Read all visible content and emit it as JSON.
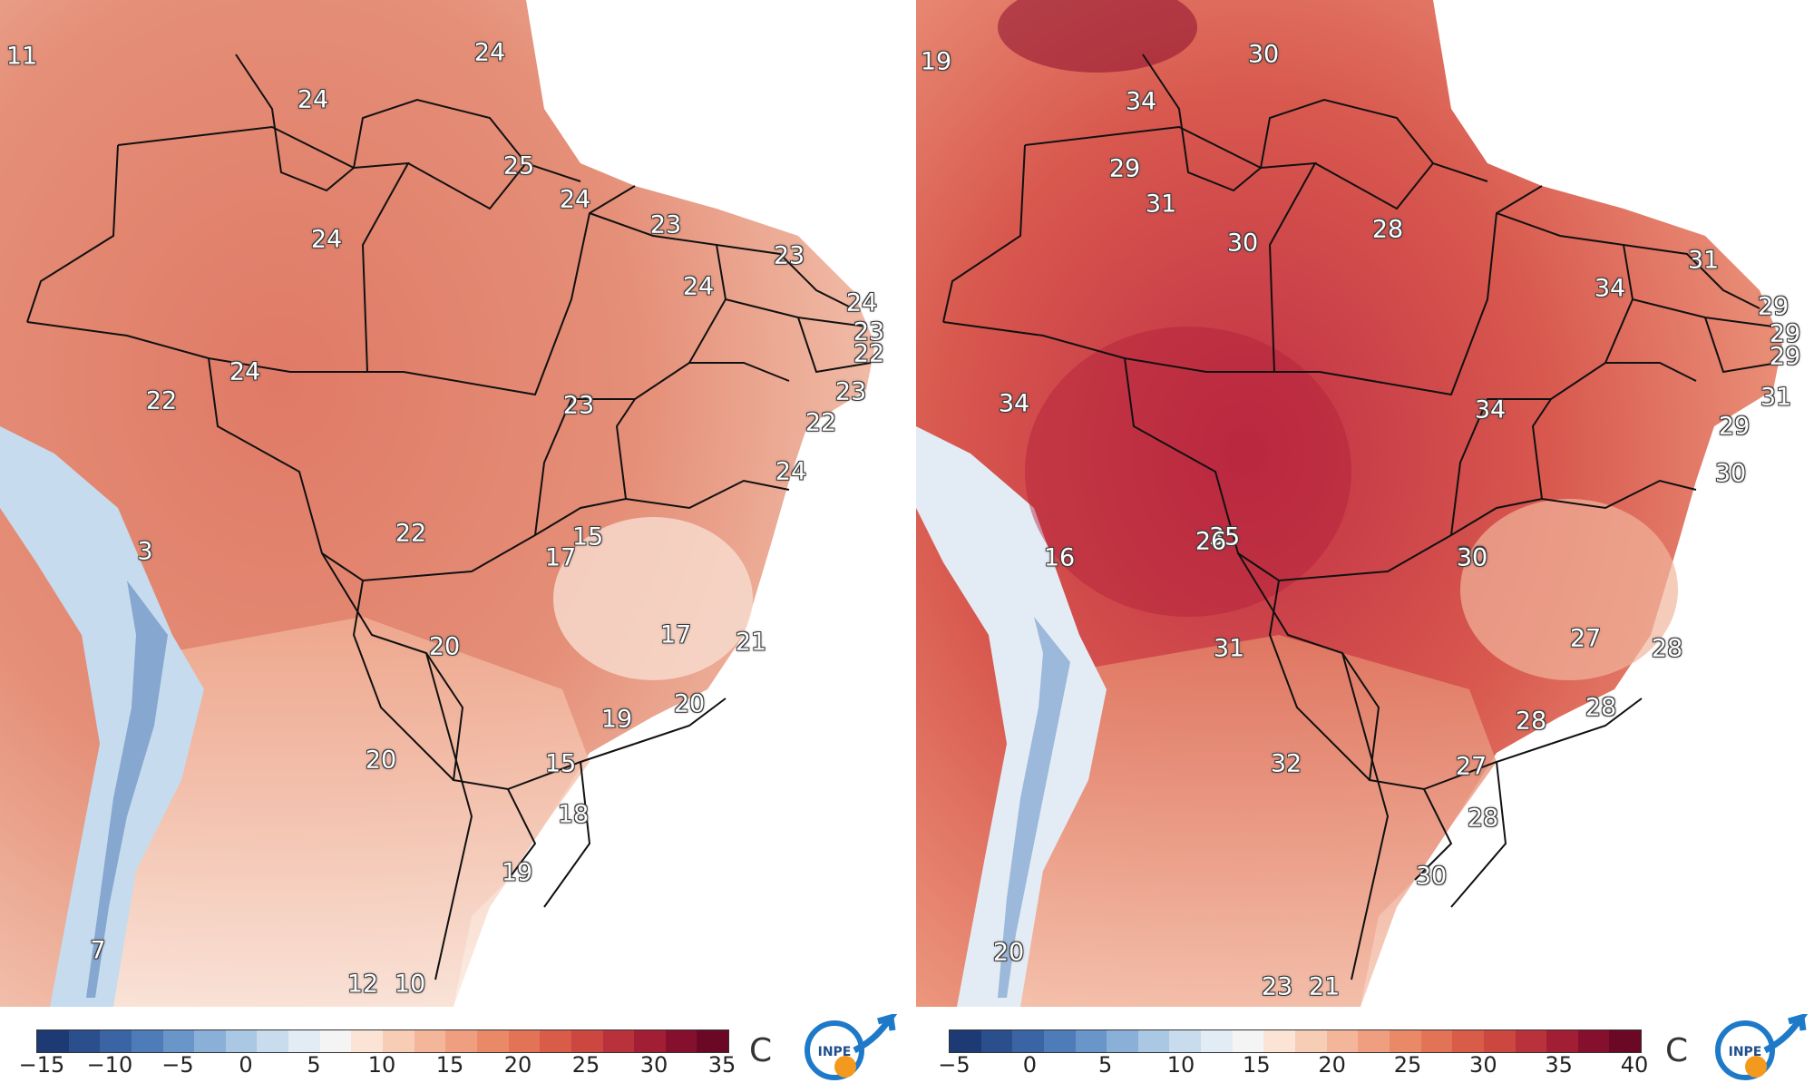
{
  "panels": [
    {
      "id": "min",
      "unit": "C",
      "colorbar": {
        "ticks": [
          "−15",
          "−10",
          "−5",
          "0",
          "5",
          "10",
          "15",
          "20",
          "25",
          "30",
          "35"
        ],
        "colors": [
          "#1d3a74",
          "#2a4f8c",
          "#3a64a3",
          "#4e7cb8",
          "#6a95c9",
          "#8bb0d8",
          "#aac7e4",
          "#c8dcee",
          "#e2ecf5",
          "#f4f4f4",
          "#fbe3d6",
          "#f8cdb6",
          "#f4b69a",
          "#ef9f80",
          "#e98968",
          "#e27356",
          "#d85c48",
          "#cb4740",
          "#b8313b",
          "#a11e34",
          "#85102d",
          "#6a0826"
        ]
      },
      "labels": [
        {
          "text": "11"
        },
        {
          "text": "24"
        },
        {
          "text": "24"
        },
        {
          "text": "25"
        },
        {
          "text": "24"
        },
        {
          "text": "24"
        },
        {
          "text": "23"
        },
        {
          "text": "23"
        },
        {
          "text": "24"
        },
        {
          "text": "24"
        },
        {
          "text": "23"
        },
        {
          "text": "22"
        },
        {
          "text": "23"
        },
        {
          "text": "22"
        },
        {
          "text": "24"
        },
        {
          "text": "22"
        },
        {
          "text": "23"
        },
        {
          "text": "24"
        },
        {
          "text": "3"
        },
        {
          "text": "22"
        },
        {
          "text": "15"
        },
        {
          "text": "17"
        },
        {
          "text": "17"
        },
        {
          "text": "21"
        },
        {
          "text": "20"
        },
        {
          "text": "20"
        },
        {
          "text": "19"
        },
        {
          "text": "15"
        },
        {
          "text": "20"
        },
        {
          "text": "18"
        },
        {
          "text": "19"
        },
        {
          "text": "7"
        },
        {
          "text": "12"
        },
        {
          "text": "10"
        }
      ]
    },
    {
      "id": "max",
      "unit": "C",
      "colorbar": {
        "ticks": [
          "−5",
          "0",
          "5",
          "10",
          "15",
          "20",
          "25",
          "30",
          "35",
          "40"
        ],
        "colors": [
          "#1d3a74",
          "#2a4f8c",
          "#3a64a3",
          "#4e7cb8",
          "#6a95c9",
          "#8bb0d8",
          "#aac7e4",
          "#c8dcee",
          "#e2ecf5",
          "#f4f4f4",
          "#fbe3d6",
          "#f8cdb6",
          "#f4b69a",
          "#ef9f80",
          "#e98968",
          "#e27356",
          "#d85c48",
          "#cb4740",
          "#b8313b",
          "#a11e34",
          "#85102d",
          "#6a0826"
        ]
      },
      "labels": [
        {
          "text": "19"
        },
        {
          "text": "30"
        },
        {
          "text": "34"
        },
        {
          "text": "29"
        },
        {
          "text": "31"
        },
        {
          "text": "28"
        },
        {
          "text": "30"
        },
        {
          "text": "31"
        },
        {
          "text": "34"
        },
        {
          "text": "29"
        },
        {
          "text": "29"
        },
        {
          "text": "29"
        },
        {
          "text": "31"
        },
        {
          "text": "29"
        },
        {
          "text": "34"
        },
        {
          "text": "34"
        },
        {
          "text": "30"
        },
        {
          "text": "30"
        },
        {
          "text": "35"
        },
        {
          "text": "26"
        },
        {
          "text": "16"
        },
        {
          "text": "30"
        },
        {
          "text": "27"
        },
        {
          "text": "28"
        },
        {
          "text": "31"
        },
        {
          "text": "28"
        },
        {
          "text": "28"
        },
        {
          "text": "27"
        },
        {
          "text": "32"
        },
        {
          "text": "28"
        },
        {
          "text": "30"
        },
        {
          "text": "20"
        },
        {
          "text": "23"
        },
        {
          "text": "21"
        }
      ]
    }
  ],
  "logo": {
    "text": "INPE",
    "colors": {
      "ring": "#1e7ac8",
      "dot": "#f39a1e"
    }
  },
  "colors": {
    "land_cold": "#bcd6ec",
    "land_mid": "#f3b39a",
    "land_warm": "#e07a66",
    "land_hot": "#c9374a",
    "ocean": "#ffffff",
    "border": "#111111"
  }
}
